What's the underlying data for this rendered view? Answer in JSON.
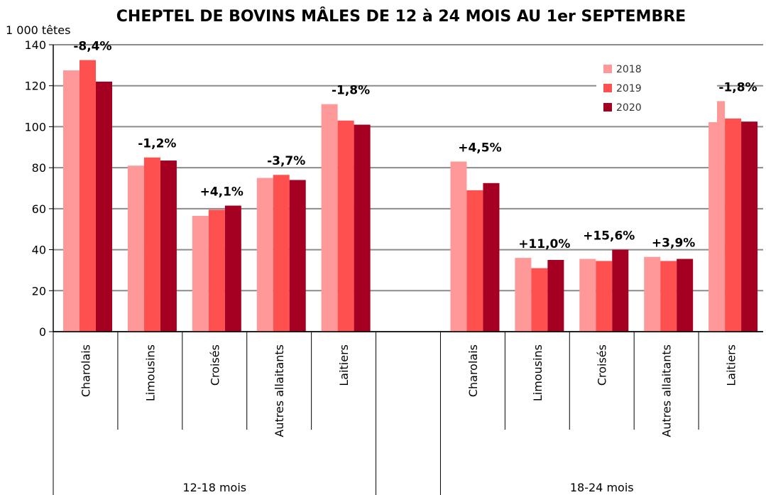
{
  "chart_data": {
    "type": "bar",
    "title": "CHEPTEL DE BOVINS MÂLES DE 12 à 24 MOIS AU 1er SEPTEMBRE",
    "y_label": "1 000 têtes",
    "categories": [
      "Charolais",
      "Limousins",
      "Croisés",
      "Autres allaitants",
      "Laitiers",
      null,
      "Charolais",
      "Limousins",
      "Croisés",
      "Autres allaitants",
      "Laitiers"
    ],
    "groups": [
      "12-18 mois",
      "18-24 mois"
    ],
    "series": [
      {
        "name": "2018",
        "color": "#ff9999",
        "values": [
          127.5,
          81,
          56.5,
          75,
          111,
          null,
          83,
          36,
          35.5,
          36.5,
          112.5
        ]
      },
      {
        "name": "2019",
        "color": "#ff5050",
        "values": [
          132.5,
          85,
          59.5,
          76.5,
          103,
          null,
          69,
          31,
          34.5,
          34.5,
          104
        ]
      },
      {
        "name": "2020",
        "color": "#a50021",
        "values": [
          122,
          83.5,
          61.5,
          74,
          101,
          null,
          72.5,
          35,
          40,
          35.5,
          102.5
        ]
      }
    ],
    "annotations": [
      "-8,4%",
      "-1,2%",
      "+4,1%",
      "-3,7%",
      "-1,8%",
      null,
      "+4,5%",
      "+11,0%",
      "+15,6%",
      "+3,9%",
      "-1,8%"
    ],
    "ylim": [
      0,
      140
    ],
    "yticks": [
      0,
      20,
      40,
      60,
      80,
      100,
      120,
      140
    ],
    "grid": true,
    "legend": "top-right"
  }
}
